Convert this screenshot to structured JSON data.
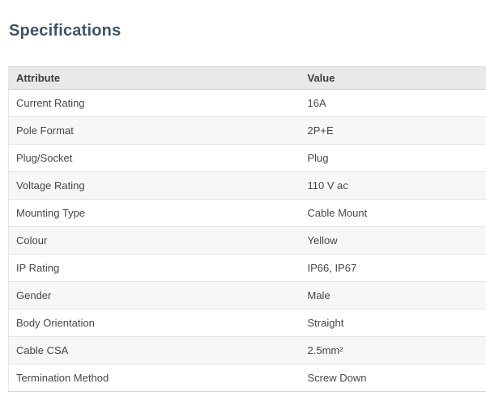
{
  "page": {
    "title": "Specifications"
  },
  "table": {
    "columns": [
      "Attribute",
      "Value"
    ],
    "rows": [
      {
        "attribute": "Current Rating",
        "value": "16A"
      },
      {
        "attribute": "Pole Format",
        "value": "2P+E"
      },
      {
        "attribute": "Plug/Socket",
        "value": "Plug"
      },
      {
        "attribute": "Voltage Rating",
        "value": "110 V ac"
      },
      {
        "attribute": "Mounting Type",
        "value": "Cable Mount"
      },
      {
        "attribute": "Colour",
        "value": "Yellow"
      },
      {
        "attribute": "IP Rating",
        "value": "IP66, IP67"
      },
      {
        "attribute": "Gender",
        "value": "Male"
      },
      {
        "attribute": "Body Orientation",
        "value": "Straight"
      },
      {
        "attribute": "Cable CSA",
        "value": "2.5mm²"
      },
      {
        "attribute": "Termination Method",
        "value": "Screw Down"
      }
    ]
  },
  "colors": {
    "title_text": "#3d5565",
    "header_background": "#e9e9e9",
    "row_stripe": "#f7f7f7",
    "row_border": "#e2e2e2",
    "body_text": "#464646"
  }
}
